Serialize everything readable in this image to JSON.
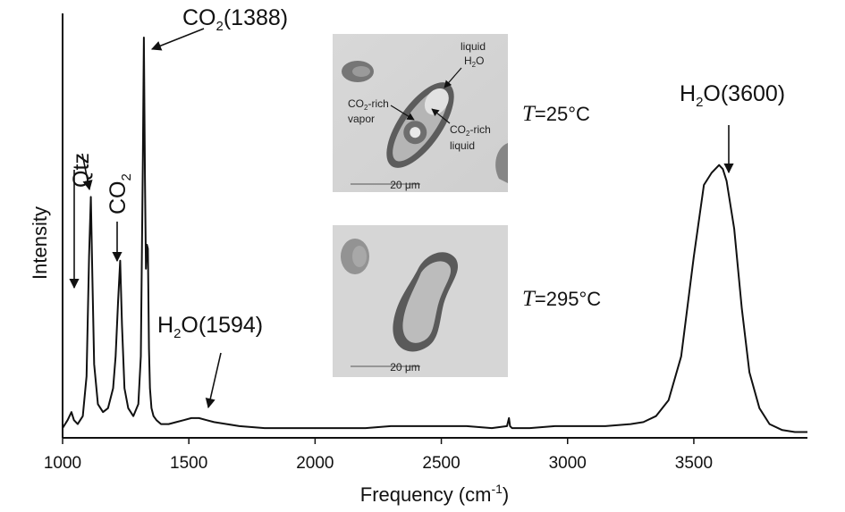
{
  "chart_data": {
    "type": "line",
    "title": "",
    "xlabel": "Frequency (cm",
    "xlabel_sup": "-1",
    "xlabel_end": ")",
    "ylabel": "Intensity",
    "xlim": [
      1000,
      3950
    ],
    "ylim": [
      0,
      1
    ],
    "x_ticks": [
      1000,
      1500,
      2000,
      2500,
      3000,
      3500
    ],
    "y_ticks_shown": false,
    "grid": false,
    "legend": "none",
    "series": [
      {
        "x": [
          1000,
          1020,
          1035,
          1045,
          1060,
          1080,
          1095,
          1105,
          1112,
          1118,
          1125,
          1140,
          1160,
          1180,
          1200,
          1210,
          1220,
          1228,
          1235,
          1245,
          1260,
          1280,
          1300,
          1310,
          1318,
          1322,
          1326,
          1330,
          1334,
          1338,
          1342,
          1346,
          1352,
          1360,
          1372,
          1390,
          1420,
          1450,
          1480,
          1510,
          1540,
          1570,
          1600,
          1650,
          1700,
          1800,
          1900,
          2000,
          2100,
          2200,
          2300,
          2400,
          2500,
          2600,
          2700,
          2760,
          2768,
          2772,
          2780,
          2850,
          2950,
          3050,
          3150,
          3250,
          3300,
          3350,
          3400,
          3450,
          3500,
          3540,
          3570,
          3600,
          3615,
          3630,
          3660,
          3690,
          3720,
          3760,
          3800,
          3850,
          3900,
          3950
        ],
        "y": [
          0.02,
          0.04,
          0.06,
          0.04,
          0.03,
          0.05,
          0.15,
          0.45,
          0.6,
          0.4,
          0.18,
          0.08,
          0.06,
          0.07,
          0.12,
          0.2,
          0.34,
          0.44,
          0.28,
          0.12,
          0.07,
          0.05,
          0.08,
          0.2,
          0.7,
          1.0,
          0.65,
          0.42,
          0.48,
          0.47,
          0.22,
          0.12,
          0.07,
          0.05,
          0.04,
          0.03,
          0.03,
          0.035,
          0.04,
          0.045,
          0.045,
          0.04,
          0.035,
          0.03,
          0.025,
          0.02,
          0.02,
          0.02,
          0.02,
          0.02,
          0.025,
          0.025,
          0.025,
          0.025,
          0.02,
          0.025,
          0.045,
          0.025,
          0.02,
          0.02,
          0.025,
          0.025,
          0.025,
          0.03,
          0.035,
          0.05,
          0.09,
          0.2,
          0.45,
          0.63,
          0.66,
          0.68,
          0.67,
          0.64,
          0.52,
          0.32,
          0.16,
          0.07,
          0.03,
          0.015,
          0.01,
          0.01
        ]
      }
    ],
    "annotations": {
      "qtz": "Qtz",
      "co2_small_main": "CO",
      "co2_small_sub": "2",
      "co2_main": "CO",
      "co2_sub": "2",
      "co2_rest": "(1388)",
      "h2o_1594_main": "H",
      "h2o_1594_sub": "2",
      "h2o_1594_rest": "O(1594)",
      "h2o_3600_main": "H",
      "h2o_3600_sub": "2",
      "h2o_3600_rest": "O(3600)"
    }
  },
  "insets": {
    "top": {
      "label_liquid": "liquid",
      "label_h2o_main": "H",
      "label_h2o_sub": "2",
      "label_h2o_rest": "O",
      "label_vapor_co": "CO",
      "label_vapor_sub": "2",
      "label_vapor_rest": "-rich",
      "label_vapor": "vapor",
      "label_liq_co": "CO",
      "label_liq_sub": "2",
      "label_liq_rest": "-rich",
      "label_liq2": "liquid",
      "scale": "20 μm",
      "temp_t": "T",
      "temp_rest": "=25°C"
    },
    "bottom": {
      "scale": "20 μm",
      "temp_t": "T",
      "temp_rest": "=295°C"
    }
  }
}
